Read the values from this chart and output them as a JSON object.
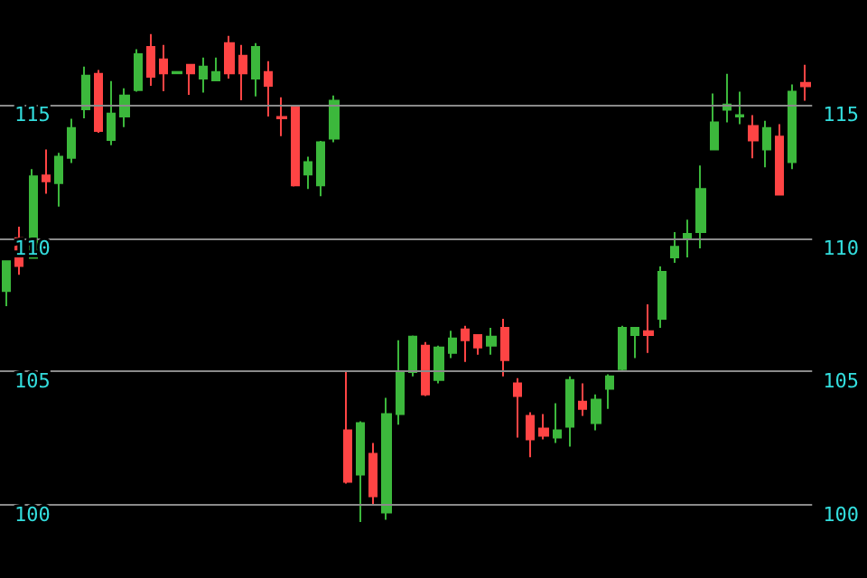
{
  "chart_data": {
    "type": "candlestick",
    "categories": [
      null,
      null,
      null,
      null,
      null,
      null,
      null,
      null,
      null,
      null,
      null,
      null,
      null,
      null,
      null,
      null,
      null,
      null,
      null,
      null,
      null,
      null,
      null,
      null,
      null,
      null,
      null,
      null,
      null,
      null,
      null,
      null,
      null,
      null,
      null,
      null,
      null,
      null,
      null,
      null,
      null,
      null,
      null,
      null,
      null,
      null,
      null,
      null,
      null,
      null,
      null,
      null,
      null,
      null,
      null,
      null,
      null,
      null,
      null,
      null,
      null,
      null
    ],
    "ohlc": [
      [
        108.02,
        109.14,
        107.45,
        109.14
      ],
      [
        110.0,
        110.43,
        108.63,
        108.96
      ],
      [
        109.26,
        112.59,
        109.26,
        112.32
      ],
      [
        112.36,
        113.33,
        111.67,
        112.14
      ],
      [
        112.07,
        113.2,
        111.19,
        113.06
      ],
      [
        113.02,
        114.48,
        112.82,
        114.14
      ],
      [
        114.84,
        116.44,
        114.5,
        116.1
      ],
      [
        116.17,
        116.31,
        113.96,
        114.03
      ],
      [
        113.69,
        115.9,
        113.49,
        114.68
      ],
      [
        114.57,
        115.63,
        114.17,
        115.36
      ],
      [
        115.56,
        117.09,
        115.5,
        116.91
      ],
      [
        117.18,
        117.66,
        115.72,
        116.06
      ],
      [
        116.71,
        117.25,
        115.52,
        116.19
      ],
      [
        116.19,
        116.24,
        116.19,
        116.24
      ],
      [
        116.51,
        116.51,
        115.38,
        116.19
      ],
      [
        115.99,
        116.78,
        115.47,
        116.44
      ],
      [
        115.92,
        116.78,
        115.92,
        116.24
      ],
      [
        117.32,
        117.59,
        115.99,
        116.19
      ],
      [
        116.85,
        117.25,
        115.18,
        116.19
      ],
      [
        115.99,
        117.32,
        115.32,
        117.18
      ],
      [
        116.24,
        116.64,
        114.57,
        115.72
      ],
      [
        114.55,
        115.29,
        113.83,
        114.5
      ],
      [
        114.95,
        115.0,
        111.94,
        111.98
      ],
      [
        112.39,
        113.06,
        111.85,
        112.86
      ],
      [
        111.98,
        113.65,
        111.58,
        113.6
      ],
      [
        113.74,
        115.36,
        113.6,
        115.16
      ],
      [
        102.79,
        105.02,
        100.79,
        100.86
      ],
      [
        101.13,
        103.13,
        99.35,
        103.06
      ],
      [
        101.91,
        102.32,
        99.98,
        100.32
      ],
      [
        99.71,
        104.01,
        99.44,
        103.4
      ],
      [
        103.4,
        106.17,
        103.0,
        105.0
      ],
      [
        104.98,
        106.35,
        104.82,
        106.31
      ],
      [
        105.97,
        106.1,
        104.08,
        104.14
      ],
      [
        104.68,
        105.97,
        104.55,
        105.9
      ],
      [
        105.7,
        106.53,
        105.5,
        106.24
      ],
      [
        106.58,
        106.71,
        105.36,
        106.17
      ],
      [
        106.37,
        106.37,
        105.63,
        105.9
      ],
      [
        105.97,
        106.64,
        105.63,
        106.31
      ],
      [
        106.64,
        106.98,
        104.82,
        105.43
      ],
      [
        104.55,
        104.75,
        102.52,
        104.08
      ],
      [
        103.33,
        103.47,
        101.78,
        102.45
      ],
      [
        102.86,
        103.4,
        102.45,
        102.59
      ],
      [
        102.52,
        103.81,
        102.32,
        102.79
      ],
      [
        102.93,
        104.82,
        102.18,
        104.68
      ],
      [
        103.87,
        104.55,
        103.33,
        103.6
      ],
      [
        103.06,
        104.14,
        102.79,
        103.94
      ],
      [
        104.35,
        104.89,
        103.6,
        104.82
      ],
      [
        105.09,
        106.71,
        105.02,
        106.64
      ],
      [
        106.37,
        106.64,
        105.5,
        106.64
      ],
      [
        106.51,
        107.52,
        105.7,
        106.37
      ],
      [
        106.98,
        108.94,
        106.64,
        108.74
      ],
      [
        109.28,
        110.23,
        109.08,
        109.68
      ],
      [
        110.02,
        110.7,
        109.28,
        110.16
      ],
      [
        110.23,
        112.73,
        109.62,
        111.85
      ],
      [
        113.33,
        115.43,
        113.33,
        114.35
      ],
      [
        114.82,
        116.17,
        114.35,
        115.02
      ],
      [
        114.57,
        115.5,
        114.28,
        114.62
      ],
      [
        114.21,
        114.62,
        113.0,
        113.67
      ],
      [
        113.33,
        114.41,
        112.66,
        114.14
      ],
      [
        113.81,
        114.28,
        111.64,
        111.64
      ],
      [
        112.86,
        115.77,
        112.59,
        115.5
      ],
      [
        115.83,
        116.51,
        115.16,
        115.7
      ]
    ],
    "colors": [
      "#3cb83c",
      "#ff4444",
      "#3cb83c",
      "#ff4444",
      "#3cb83c",
      "#3cb83c",
      "#3cb83c",
      "#ff4444",
      "#3cb83c",
      "#3cb83c",
      "#3cb83c",
      "#ff4444",
      "#ff4444",
      "#3cb83c",
      "#ff4444",
      "#3cb83c",
      "#3cb83c",
      "#ff4444",
      "#ff4444",
      "#3cb83c",
      "#ff4444",
      "#ff4444",
      "#ff4444",
      "#3cb83c",
      "#3cb83c",
      "#3cb83c",
      "#ff4444",
      "#3cb83c",
      "#ff4444",
      "#3cb83c",
      "#3cb83c",
      "#3cb83c",
      "#ff4444",
      "#3cb83c",
      "#3cb83c",
      "#ff4444",
      "#ff4444",
      "#3cb83c",
      "#ff4444",
      "#ff4444",
      "#ff4444",
      "#ff4444",
      "#3cb83c",
      "#3cb83c",
      "#ff4444",
      "#3cb83c",
      "#3cb83c",
      "#3cb83c",
      "#3cb83c",
      "#ff4444",
      "#3cb83c",
      "#3cb83c",
      "#3cb83c",
      "#3cb83c",
      "#3cb83c",
      "#3cb83c",
      "#3cb83c",
      "#ff4444",
      "#3cb83c",
      "#ff4444",
      "#3cb83c",
      "#ff4444"
    ],
    "ylim": [
      97.25,
      118.94
    ],
    "yticks": [
      100,
      105,
      110,
      115
    ],
    "y2lim": [
      97.25,
      118.94
    ],
    "y2ticks": [
      100,
      105,
      110,
      115
    ],
    "grid": "y",
    "tick_labels": "y"
  }
}
